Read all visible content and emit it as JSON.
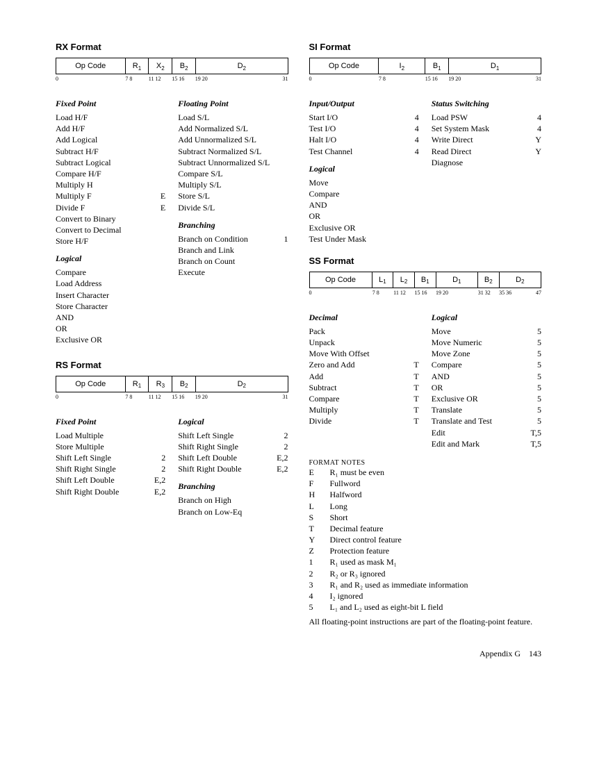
{
  "rx": {
    "title": "RX Format",
    "cells": [
      "Op Code",
      "R",
      "X",
      "B",
      "D"
    ],
    "subs": [
      "",
      "1",
      "2",
      "2",
      "2"
    ],
    "bits": [
      "0",
      "7 8",
      "11 12",
      "15 16",
      "19 20",
      "31"
    ],
    "groups": {
      "fixedPoint": {
        "title": "Fixed Point",
        "items": [
          {
            "n": "Load H/F",
            "c": ""
          },
          {
            "n": "Add H/F",
            "c": ""
          },
          {
            "n": "Add Logical",
            "c": ""
          },
          {
            "n": "Subtract H/F",
            "c": ""
          },
          {
            "n": "Subtract Logical",
            "c": ""
          },
          {
            "n": "Compare H/F",
            "c": ""
          },
          {
            "n": "Multiply H",
            "c": ""
          },
          {
            "n": "Multiply F",
            "c": "E"
          },
          {
            "n": "Divide F",
            "c": "E"
          },
          {
            "n": "Convert to Binary",
            "c": ""
          },
          {
            "n": "Convert to Decimal",
            "c": ""
          },
          {
            "n": "Store H/F",
            "c": ""
          }
        ]
      },
      "floatingPoint": {
        "title": "Floating Point",
        "items": [
          {
            "n": "Load S/L",
            "c": ""
          },
          {
            "n": "Add Normalized S/L",
            "c": ""
          },
          {
            "n": "Add Unnormalized S/L",
            "c": ""
          },
          {
            "n": "Subtract Normalized S/L",
            "c": ""
          },
          {
            "n": "Subtract Unnormalized S/L",
            "c": ""
          },
          {
            "n": "Compare S/L",
            "c": ""
          },
          {
            "n": "Multiply S/L",
            "c": ""
          },
          {
            "n": "Store S/L",
            "c": ""
          },
          {
            "n": "Divide S/L",
            "c": ""
          }
        ]
      },
      "logical": {
        "title": "Logical",
        "items": [
          {
            "n": "Compare",
            "c": ""
          },
          {
            "n": "Load Address",
            "c": ""
          },
          {
            "n": "Insert Character",
            "c": ""
          },
          {
            "n": "Store Character",
            "c": ""
          },
          {
            "n": "AND",
            "c": ""
          },
          {
            "n": "OR",
            "c": ""
          },
          {
            "n": "Exclusive OR",
            "c": ""
          }
        ]
      },
      "branching": {
        "title": "Branching",
        "items": [
          {
            "n": "Branch on Condition",
            "c": "1"
          },
          {
            "n": "Branch and Link",
            "c": ""
          },
          {
            "n": "Branch on Count",
            "c": ""
          },
          {
            "n": "Execute",
            "c": ""
          }
        ]
      }
    }
  },
  "rs": {
    "title": "RS Format",
    "cells": [
      "Op Code",
      "R",
      "R",
      "B",
      "D"
    ],
    "subs": [
      "",
      "1",
      "3",
      "2",
      "2"
    ],
    "bits": [
      "0",
      "7 8",
      "11 12",
      "15 16",
      "19 20",
      "31"
    ],
    "groups": {
      "fixedPoint": {
        "title": "Fixed Point",
        "items": [
          {
            "n": "Load Multiple",
            "c": ""
          },
          {
            "n": "Store Multiple",
            "c": ""
          },
          {
            "n": "Shift Left Single",
            "c": "2"
          },
          {
            "n": "Shift Right Single",
            "c": "2"
          },
          {
            "n": "Shift Left Double",
            "c": "E,2"
          },
          {
            "n": "Shift Right Double",
            "c": "E,2"
          }
        ]
      },
      "logical": {
        "title": "Logical",
        "items": [
          {
            "n": "Shift Left Single",
            "c": "2"
          },
          {
            "n": "Shift Right Single",
            "c": "2"
          },
          {
            "n": "Shift Left Double",
            "c": "E,2"
          },
          {
            "n": "Shift Right Double",
            "c": "E,2"
          }
        ]
      },
      "branching": {
        "title": "Branching",
        "items": [
          {
            "n": "Branch on High",
            "c": ""
          },
          {
            "n": "Branch on Low-Eq",
            "c": ""
          }
        ]
      }
    }
  },
  "si": {
    "title": "SI Format",
    "cells": [
      "Op Code",
      "I",
      "B",
      "D"
    ],
    "subs": [
      "",
      "2",
      "1",
      "1"
    ],
    "bits": [
      "0",
      "7 8",
      "15 16",
      "19 20",
      "31"
    ],
    "groups": {
      "io": {
        "title": "Input/Output",
        "items": [
          {
            "n": "Start I/O",
            "c": "4"
          },
          {
            "n": "Test I/O",
            "c": "4"
          },
          {
            "n": "Halt I/O",
            "c": "4"
          },
          {
            "n": "Test Channel",
            "c": "4"
          }
        ]
      },
      "status": {
        "title": "Status Switching",
        "items": [
          {
            "n": "Load PSW",
            "c": "4"
          },
          {
            "n": "Set System Mask",
            "c": "4"
          },
          {
            "n": "Write Direct",
            "c": "Y"
          },
          {
            "n": "Read Direct",
            "c": "Y"
          },
          {
            "n": "Diagnose",
            "c": ""
          }
        ]
      },
      "logical": {
        "title": "Logical",
        "items": [
          {
            "n": "Move",
            "c": ""
          },
          {
            "n": "Compare",
            "c": ""
          },
          {
            "n": "AND",
            "c": ""
          },
          {
            "n": "OR",
            "c": ""
          },
          {
            "n": "Exclusive OR",
            "c": ""
          },
          {
            "n": "Test Under Mask",
            "c": ""
          }
        ]
      }
    }
  },
  "ss": {
    "title": "SS Format",
    "cells": [
      "Op Code",
      "L",
      "L",
      "B",
      "D",
      "B",
      "D"
    ],
    "subs": [
      "",
      "1",
      "2",
      "1",
      "1",
      "2",
      "2"
    ],
    "bits": [
      "0",
      "7 8",
      "11 12",
      "15 16",
      "19 20",
      "31 32",
      "35 36",
      "47"
    ],
    "groups": {
      "decimal": {
        "title": "Decimal",
        "items": [
          {
            "n": "Pack",
            "c": ""
          },
          {
            "n": "Unpack",
            "c": ""
          },
          {
            "n": "Move With Offset",
            "c": ""
          },
          {
            "n": "Zero and Add",
            "c": "T"
          },
          {
            "n": "Add",
            "c": "T"
          },
          {
            "n": "Subtract",
            "c": "T"
          },
          {
            "n": "Compare",
            "c": "T"
          },
          {
            "n": "Multiply",
            "c": "T"
          },
          {
            "n": "Divide",
            "c": "T"
          }
        ]
      },
      "logical": {
        "title": "Logical",
        "items": [
          {
            "n": "Move",
            "c": "5"
          },
          {
            "n": "Move Numeric",
            "c": "5"
          },
          {
            "n": "Move Zone",
            "c": "5"
          },
          {
            "n": "Compare",
            "c": "5"
          },
          {
            "n": "AND",
            "c": "5"
          },
          {
            "n": "OR",
            "c": "5"
          },
          {
            "n": "Exclusive OR",
            "c": "5"
          },
          {
            "n": "Translate",
            "c": "5"
          },
          {
            "n": "Translate and Test",
            "c": "5"
          },
          {
            "n": "Edit",
            "c": "T,5"
          },
          {
            "n": "Edit and Mark",
            "c": "T,5"
          }
        ]
      }
    }
  },
  "notes": {
    "title": "FORMAT NOTES",
    "items": [
      {
        "k": "E",
        "v": "R₁ must be even"
      },
      {
        "k": "F",
        "v": "Fullword"
      },
      {
        "k": "H",
        "v": "Halfword"
      },
      {
        "k": "L",
        "v": "Long"
      },
      {
        "k": "S",
        "v": "Short"
      },
      {
        "k": "T",
        "v": "Decimal feature"
      },
      {
        "k": "Y",
        "v": "Direct control feature"
      },
      {
        "k": "Z",
        "v": "Protection feature"
      },
      {
        "k": "1",
        "v": "R₁ used as mask M₁"
      },
      {
        "k": "2",
        "v": "R₂ or R₃ ignored"
      },
      {
        "k": "3",
        "v": "R₁ and R₂ used as immediate information"
      },
      {
        "k": "4",
        "v": "I₂ ignored"
      },
      {
        "k": "5",
        "v": "L₁ and L₂ used as eight-bit L field"
      }
    ],
    "footnote": "All floating-point instructions are part of the floating-point feature."
  },
  "footer": {
    "label": "Appendix G",
    "page": "143"
  }
}
